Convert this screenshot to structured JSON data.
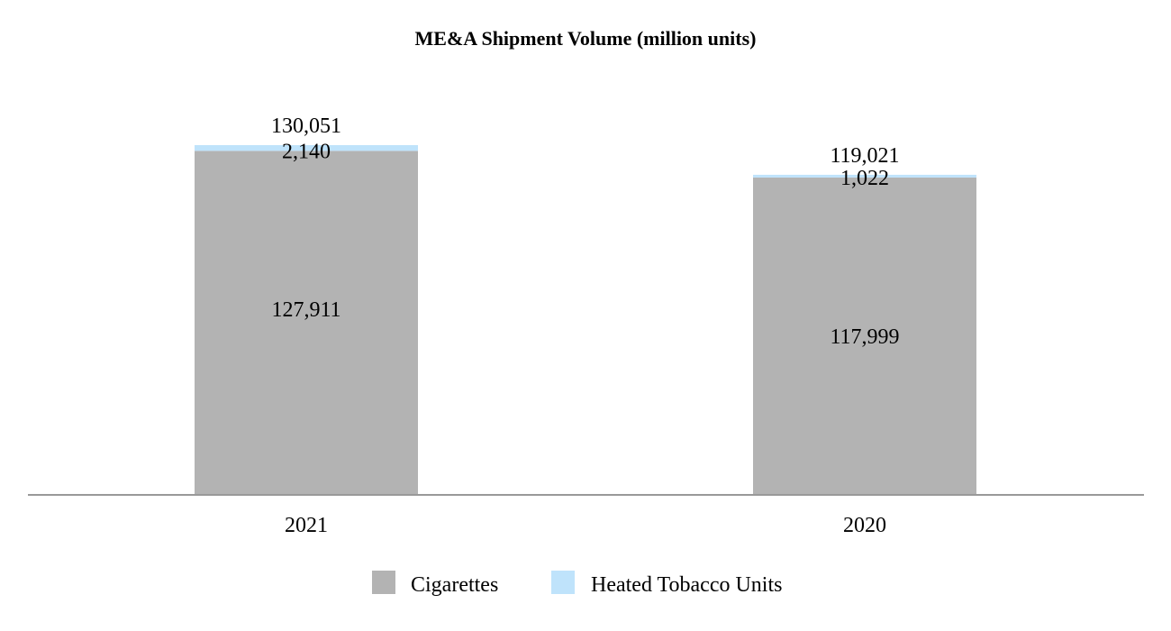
{
  "chart_data": {
    "type": "bar",
    "stacked": true,
    "title": "ME&A Shipment Volume (million units)",
    "categories": [
      "2021",
      "2020"
    ],
    "series": [
      {
        "name": "Cigarettes",
        "values": [
          127911,
          117999
        ],
        "value_labels": [
          "127,911",
          "117,999"
        ],
        "color": "#b3b3b3"
      },
      {
        "name": "Heated Tobacco Units",
        "values": [
          2140,
          1022
        ],
        "value_labels": [
          "2,140",
          "1,022"
        ],
        "color": "#bfe3fb"
      }
    ],
    "totals": [
      130051,
      119021
    ],
    "total_labels": [
      "130,051",
      "119,021"
    ],
    "ylim": [
      0,
      150000
    ],
    "grid": false,
    "legend_position": "bottom-center",
    "axis_color": "#999999"
  }
}
